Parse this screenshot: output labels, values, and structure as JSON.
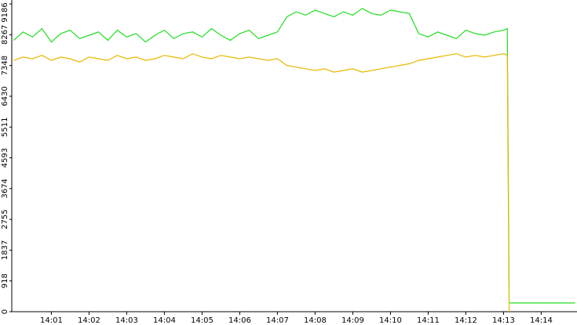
{
  "chart_data": {
    "type": "line",
    "x": [
      0,
      0.25,
      0.5,
      0.75,
      1,
      1.25,
      1.5,
      1.75,
      2,
      2.25,
      2.5,
      2.75,
      3,
      3.25,
      3.5,
      3.75,
      4,
      4.25,
      4.5,
      4.75,
      5,
      5.25,
      5.5,
      5.75,
      6,
      6.25,
      6.5,
      6.75,
      7,
      7.25,
      7.5,
      7.75,
      8,
      8.25,
      8.5,
      8.75,
      9,
      9.25,
      9.5,
      9.75,
      10,
      10.25,
      10.5,
      10.75,
      11,
      11.25,
      11.5,
      11.75,
      12,
      12.25,
      12.5,
      12.75,
      13,
      13.1,
      13.15,
      13.5,
      14,
      14.5,
      14.9
    ],
    "series": [
      {
        "color": "#22dd22",
        "values": [
          8100,
          8350,
          8200,
          8450,
          8050,
          8300,
          8400,
          8150,
          8250,
          8350,
          8100,
          8400,
          8200,
          8300,
          8050,
          8250,
          8400,
          8150,
          8300,
          8350,
          8200,
          8450,
          8250,
          8100,
          8300,
          8400,
          8150,
          8250,
          8350,
          8800,
          8950,
          8850,
          9000,
          8900,
          8800,
          8950,
          8850,
          9050,
          8900,
          8850,
          9000,
          8950,
          8900,
          8300,
          8200,
          8350,
          8250,
          8150,
          8400,
          8300,
          8250,
          8350,
          8400,
          8450,
          260,
          260,
          260,
          260,
          260
        ]
      },
      {
        "color": "#e6b800",
        "values": [
          7500,
          7600,
          7550,
          7650,
          7500,
          7600,
          7550,
          7450,
          7600,
          7550,
          7500,
          7650,
          7550,
          7600,
          7500,
          7550,
          7650,
          7600,
          7550,
          7700,
          7600,
          7550,
          7650,
          7600,
          7550,
          7600,
          7550,
          7500,
          7550,
          7350,
          7300,
          7250,
          7200,
          7250,
          7150,
          7200,
          7250,
          7150,
          7200,
          7250,
          7300,
          7350,
          7400,
          7500,
          7550,
          7600,
          7650,
          7700,
          7600,
          7650,
          7600,
          7650,
          7700,
          7650,
          0,
          null,
          null,
          null,
          null
        ]
      }
    ],
    "xlim": [
      -0.05,
      14.95
    ],
    "xticks": [
      {
        "value": 1,
        "label": "14:01"
      },
      {
        "value": 2,
        "label": "14:02"
      },
      {
        "value": 3,
        "label": "14:03"
      },
      {
        "value": 4,
        "label": "14:04"
      },
      {
        "value": 5,
        "label": "14:05"
      },
      {
        "value": 6,
        "label": "14:06"
      },
      {
        "value": 7,
        "label": "14:07"
      },
      {
        "value": 8,
        "label": "14:08"
      },
      {
        "value": 9,
        "label": "14:09"
      },
      {
        "value": 10,
        "label": "14:10"
      },
      {
        "value": 11,
        "label": "14:11"
      },
      {
        "value": 12,
        "label": "14:12"
      },
      {
        "value": 13,
        "label": "14:13"
      },
      {
        "value": 14,
        "label": "14:14"
      }
    ],
    "ylim": [
      0,
      9186
    ],
    "yticks": [
      0,
      918,
      1837,
      2755,
      3674,
      4593,
      5511,
      6430,
      7348,
      8267,
      9186
    ]
  }
}
